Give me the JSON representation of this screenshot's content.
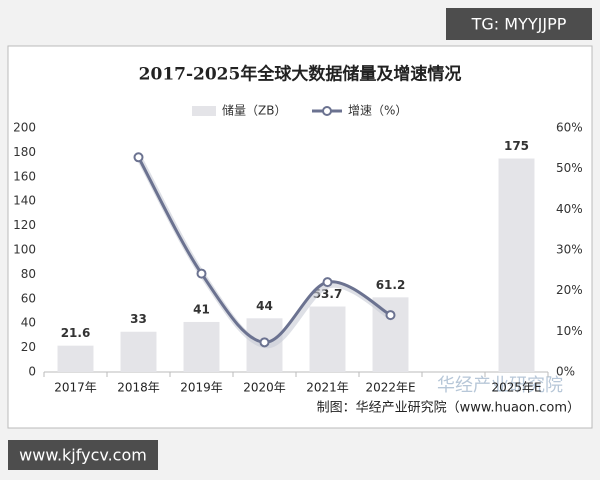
{
  "chart_data": {
    "type": "bar-line",
    "title": "2017-2025年全球大数据储量及增速情况",
    "categories": [
      "2017年",
      "2018年",
      "2019年",
      "2020年",
      "2021年",
      "2022年E",
      null,
      "2025年E"
    ],
    "series": [
      {
        "name": "储量（ZB）",
        "type": "bar",
        "color": "#e4e4e8",
        "values": [
          21.6,
          33,
          41,
          44,
          53.7,
          61.2,
          null,
          175
        ]
      },
      {
        "name": "增速（%）",
        "type": "line",
        "axis": "y2",
        "color": "#6b7290",
        "values": [
          null,
          52.8,
          24.2,
          7.3,
          22.1,
          14.0,
          null,
          null
        ]
      }
    ],
    "ylim": [
      0,
      200
    ],
    "yticks": [
      0,
      20,
      40,
      60,
      80,
      100,
      120,
      140,
      160,
      180,
      200
    ],
    "y2lim": [
      0,
      60
    ],
    "y2ticks": [
      {
        "value": 0,
        "label": "0%"
      },
      {
        "value": 10,
        "label": "10%"
      },
      {
        "value": 20,
        "label": "20%"
      },
      {
        "value": 30,
        "label": "30%"
      },
      {
        "value": 40,
        "label": "40%"
      },
      {
        "value": 50,
        "label": "50%"
      },
      {
        "value": 60,
        "label": "60%"
      }
    ],
    "source": "制图：华经产业研究院（www.huaon.com）"
  },
  "overlays": {
    "tag": "TG: MYYJJPP",
    "site": "www.kjfycv.com",
    "watermark": "华经产业研究院"
  }
}
